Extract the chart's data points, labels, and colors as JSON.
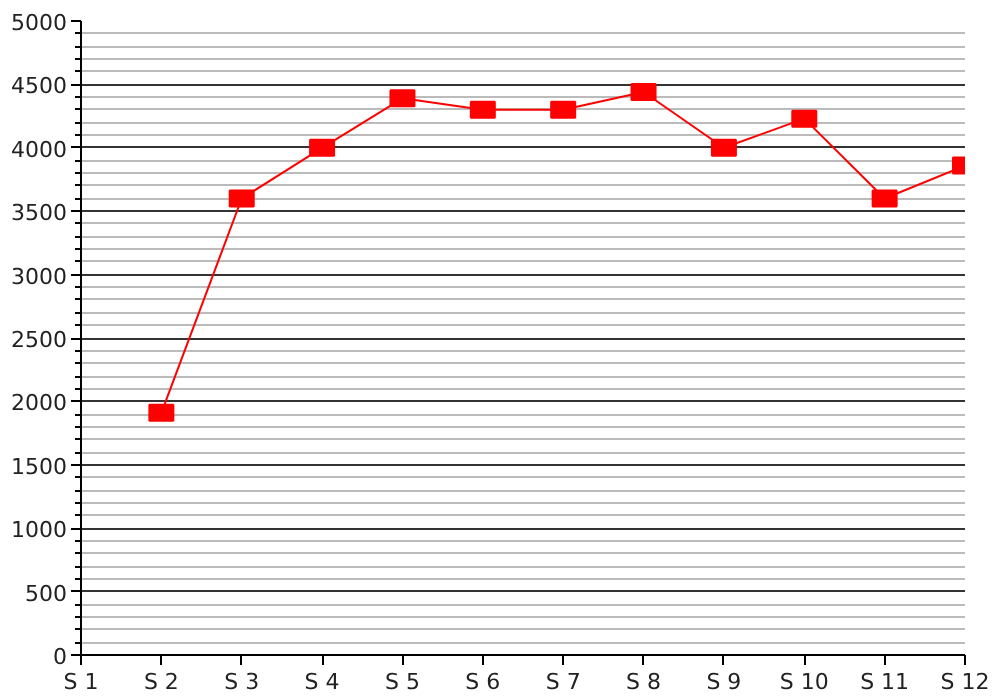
{
  "chart_data": {
    "type": "line",
    "categories": [
      "S 1",
      "S 2",
      "S 3",
      "S 4",
      "S 5",
      "S 6",
      "S 7",
      "S 8",
      "S 9",
      "S 10",
      "S 11",
      "S 12"
    ],
    "series": [
      {
        "color": "#ff0000",
        "values": [
          null,
          1910,
          3600,
          4000,
          4390,
          4300,
          4300,
          4440,
          4000,
          4230,
          3600,
          3860
        ]
      }
    ],
    "ylim": [
      0,
      5000
    ],
    "yticks": [
      0,
      500,
      1000,
      1500,
      2000,
      2500,
      3000,
      3500,
      4000,
      4500,
      5000
    ],
    "grid": "y",
    "marker": "square",
    "line_style": "solid"
  }
}
